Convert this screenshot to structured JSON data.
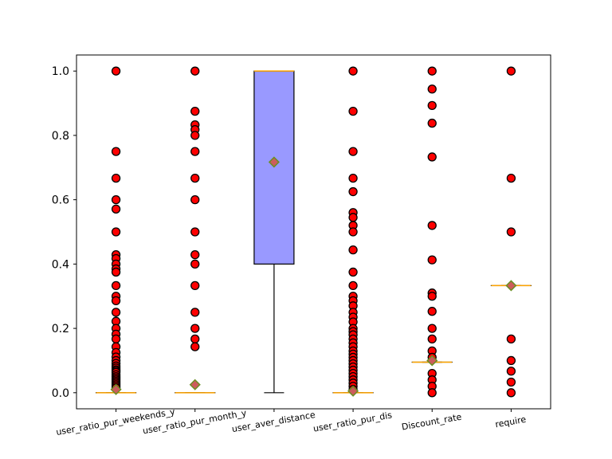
{
  "chart_data": {
    "type": "boxplot",
    "title": "",
    "xlabel": "",
    "ylabel": "",
    "ylim": [
      -0.05,
      1.05
    ],
    "yticks": [
      "0.0",
      "0.2",
      "0.4",
      "0.6",
      "0.8",
      "1.0"
    ],
    "ytick_values": [
      0.0,
      0.2,
      0.4,
      0.6,
      0.8,
      1.0
    ],
    "categories": [
      "user_ratio_pur_weekends_y",
      "user_ratio_pur_month_y",
      "user_aver_distance",
      "user_ratio_pur_dis",
      "Discount_rate",
      "require"
    ],
    "grid": false,
    "colors": {
      "box_fill": "#9999ff",
      "median": "#ffa500",
      "outlier_fill": "#ff0000",
      "mean_marker_fill": "#cd5c5c",
      "mean_marker_edge": "#6b8e23",
      "edge": "#000000"
    },
    "boxes": [
      {
        "name": "user_ratio_pur_weekends_y",
        "q1": 0.0,
        "median": 0.0,
        "q3": 0.0,
        "whisker_low": 0.0,
        "whisker_high": 0.0,
        "mean": 0.01,
        "outliers": [
          1.0,
          0.75,
          0.667,
          0.6,
          0.571,
          0.5,
          0.429,
          0.417,
          0.4,
          0.385,
          0.375,
          0.333,
          0.3,
          0.286,
          0.25,
          0.222,
          0.2,
          0.182,
          0.167,
          0.143,
          0.125,
          0.111,
          0.1,
          0.091,
          0.083,
          0.077,
          0.071,
          0.067,
          0.063,
          0.056,
          0.05,
          0.045,
          0.04,
          0.035,
          0.03,
          0.025,
          0.02,
          0.015
        ]
      },
      {
        "name": "user_ratio_pur_month_y",
        "q1": 0.0,
        "median": 0.0,
        "q3": 0.0,
        "whisker_low": 0.0,
        "whisker_high": 0.0,
        "mean": 0.025,
        "outliers": [
          1.0,
          0.875,
          0.833,
          0.818,
          0.8,
          0.75,
          0.667,
          0.6,
          0.5,
          0.429,
          0.4,
          0.333,
          0.25,
          0.2,
          0.167,
          0.143
        ]
      },
      {
        "name": "user_aver_distance",
        "q1": 0.4,
        "median": 1.0,
        "q3": 1.0,
        "whisker_low": 0.0,
        "whisker_high": 1.0,
        "mean": 0.717,
        "outliers": []
      },
      {
        "name": "user_ratio_pur_dis",
        "q1": 0.0,
        "median": 0.0,
        "q3": 0.0,
        "whisker_low": 0.0,
        "whisker_high": 0.0,
        "mean": 0.005,
        "outliers": [
          1.0,
          0.875,
          0.75,
          0.667,
          0.625,
          0.56,
          0.545,
          0.52,
          0.5,
          0.444,
          0.375,
          0.333,
          0.3,
          0.286,
          0.27,
          0.25,
          0.235,
          0.22,
          0.2,
          0.19,
          0.18,
          0.167,
          0.155,
          0.143,
          0.13,
          0.12,
          0.11,
          0.1,
          0.09,
          0.08,
          0.07,
          0.06,
          0.05,
          0.04,
          0.03,
          0.02,
          0.01
        ]
      },
      {
        "name": "Discount_rate",
        "q1": 0.095,
        "median": 0.095,
        "q3": 0.095,
        "whisker_low": 0.095,
        "whisker_high": 0.095,
        "mean": 0.1,
        "outliers": [
          1.0,
          0.944,
          0.893,
          0.838,
          0.733,
          0.52,
          0.413,
          0.31,
          0.3,
          0.253,
          0.2,
          0.167,
          0.13,
          0.11,
          0.06,
          0.04,
          0.02,
          0.0
        ]
      },
      {
        "name": "require",
        "q1": 0.333,
        "median": 0.333,
        "q3": 0.333,
        "whisker_low": 0.333,
        "whisker_high": 0.333,
        "mean": 0.333,
        "outliers": [
          1.0,
          0.667,
          0.5,
          0.167,
          0.1,
          0.067,
          0.033,
          0.0
        ]
      }
    ]
  }
}
